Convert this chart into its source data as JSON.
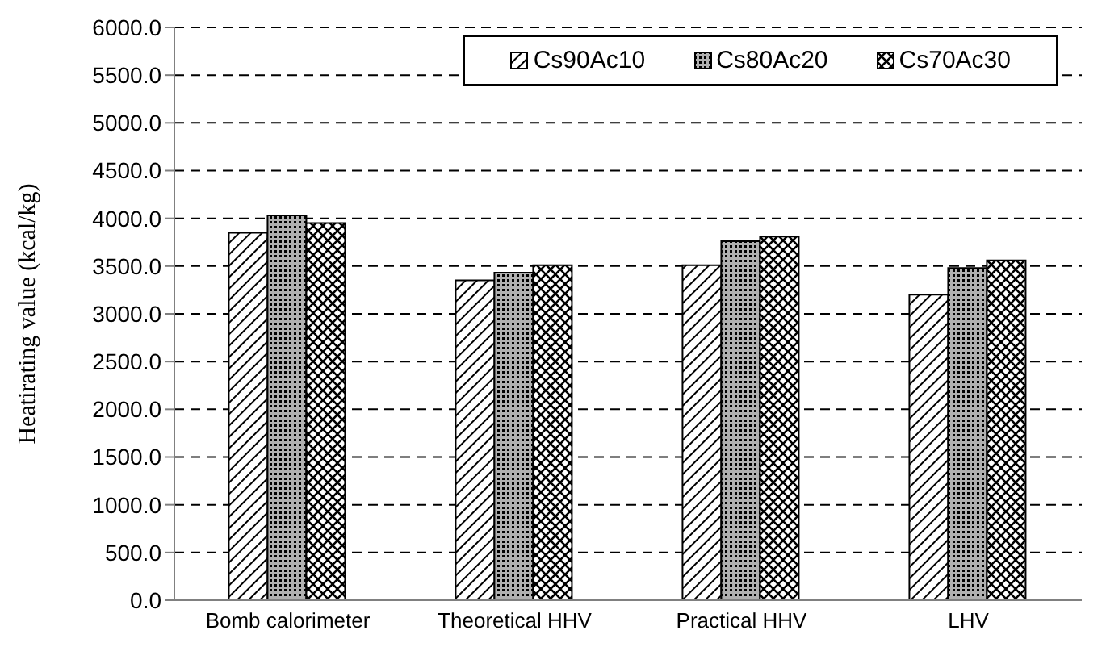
{
  "chart_data": {
    "type": "bar",
    "ylabel": "Heatirating value (kcal/kg)",
    "categories": [
      "Bomb calorimeter",
      "Theoretical HHV",
      "Practical HHV",
      "LHV"
    ],
    "series": [
      {
        "name": "Cs90Ac10",
        "color": "#000000",
        "values": [
          3850,
          3350,
          3510,
          3200
        ]
      },
      {
        "name": "Cs80Ac20",
        "color": "#000000",
        "values": [
          4030,
          3430,
          3760,
          3480
        ]
      },
      {
        "name": "Cs70Ac30",
        "color": "#000000",
        "values": [
          3950,
          3510,
          3810,
          3560
        ]
      }
    ],
    "ylim": [
      0,
      6000
    ],
    "yticks": [
      {
        "value": 0,
        "label": "0.0"
      },
      {
        "value": 500,
        "label": "500.0"
      },
      {
        "value": 1000,
        "label": "1000.0"
      },
      {
        "value": 1500,
        "label": "1500.0"
      },
      {
        "value": 2000,
        "label": "2000.0"
      },
      {
        "value": 2500,
        "label": "2500.0"
      },
      {
        "value": 3000,
        "label": "3000.0"
      },
      {
        "value": 3500,
        "label": "3500.0"
      },
      {
        "value": 4000,
        "label": "4000.0"
      },
      {
        "value": 4500,
        "label": "4500.0"
      },
      {
        "value": 5000,
        "label": "5000.0"
      },
      {
        "value": 5500,
        "label": "5500.0"
      },
      {
        "value": 6000,
        "label": "6000.0"
      }
    ],
    "grid": "y",
    "legend": "top right"
  }
}
